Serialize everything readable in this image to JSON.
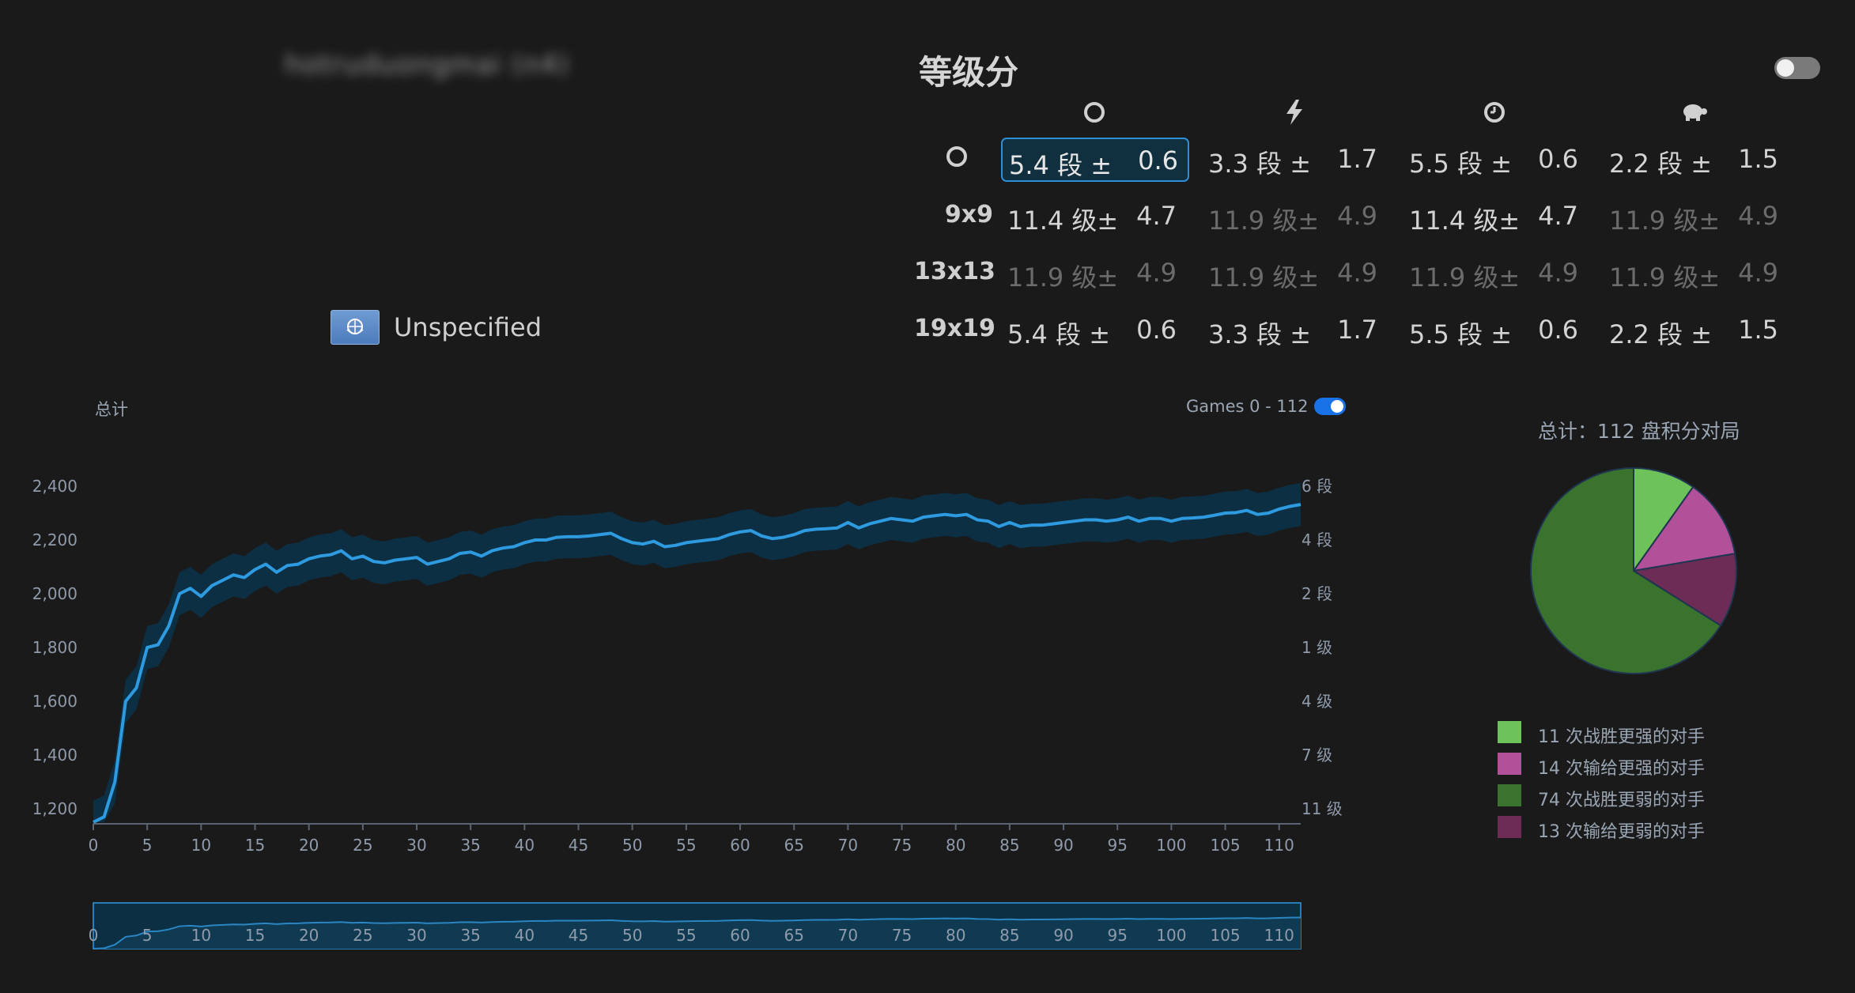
{
  "profile": {
    "username": "hotruduongmai (n4)",
    "country": "Unspecified"
  },
  "ratings": {
    "title": "等级分",
    "columns": [
      "overall-icon",
      "blitz-icon",
      "live-clock-icon",
      "correspondence-turtle-icon"
    ],
    "rows": [
      {
        "label": "",
        "icon": "overall-icon",
        "cells": [
          {
            "rank": "5.4 段 ±",
            "dev": "0.6",
            "dim": false,
            "selected": true
          },
          {
            "rank": "3.3 段 ±",
            "dev": "1.7",
            "dim": false
          },
          {
            "rank": "5.5 段 ±",
            "dev": "0.6",
            "dim": false
          },
          {
            "rank": "2.2 段 ±",
            "dev": "1.5",
            "dim": false
          }
        ]
      },
      {
        "label": "9x9",
        "cells": [
          {
            "rank": "11.4 级±",
            "dev": "4.7",
            "dim": false
          },
          {
            "rank": "11.9 级±",
            "dev": "4.9",
            "dim": true
          },
          {
            "rank": "11.4 级±",
            "dev": "4.7",
            "dim": false
          },
          {
            "rank": "11.9 级±",
            "dev": "4.9",
            "dim": true
          }
        ]
      },
      {
        "label": "13x13",
        "cells": [
          {
            "rank": "11.9 级±",
            "dev": "4.9",
            "dim": true
          },
          {
            "rank": "11.9 级±",
            "dev": "4.9",
            "dim": true
          },
          {
            "rank": "11.9 级±",
            "dev": "4.9",
            "dim": true
          },
          {
            "rank": "11.9 级±",
            "dev": "4.9",
            "dim": true
          }
        ]
      },
      {
        "label": "19x19",
        "cells": [
          {
            "rank": "5.4 段 ±",
            "dev": "0.6",
            "dim": false
          },
          {
            "rank": "3.3 段 ±",
            "dev": "1.7",
            "dim": false
          },
          {
            "rank": "5.5 段 ±",
            "dev": "0.6",
            "dim": false
          },
          {
            "rank": "2.2 段 ±",
            "dev": "1.5",
            "dim": false
          }
        ]
      }
    ]
  },
  "chart_header": {
    "title": "总计",
    "range_label": "Games 0 - 112",
    "range_toggle_on": true
  },
  "colors": {
    "line": "#2e9be0",
    "band": "#0c2f44",
    "axis_text": "#8f9bab",
    "pie_win_stronger": "#6dc25a",
    "pie_loss_stronger": "#b2519a",
    "pie_win_weaker": "#3a732d",
    "pie_loss_weaker": "#6c2c55"
  },
  "chart_data": [
    {
      "type": "line",
      "title": "总计",
      "xlabel": "",
      "ylabel": "",
      "xlim": [
        0,
        112
      ],
      "ylim": [
        1150,
        2450
      ],
      "x_ticks": [
        0,
        5,
        10,
        15,
        20,
        25,
        30,
        35,
        40,
        45,
        50,
        55,
        60,
        65,
        70,
        75,
        80,
        85,
        90,
        95,
        100,
        105,
        110
      ],
      "y_ticks": [
        1200,
        1400,
        1600,
        1800,
        2000,
        2200,
        2400
      ],
      "y_tick_labels": [
        "1,200",
        "1,400",
        "1,600",
        "1,800",
        "2,000",
        "2,200",
        "2,400"
      ],
      "y2_ticks": [
        {
          "value": 2400,
          "label": "6 段"
        },
        {
          "value": 2200,
          "label": "4 段"
        },
        {
          "value": 2000,
          "label": "2 段"
        },
        {
          "value": 1800,
          "label": "1 级"
        },
        {
          "value": 1600,
          "label": "4 级"
        },
        {
          "value": 1400,
          "label": "7 级"
        },
        {
          "value": 1200,
          "label": "11 级"
        }
      ],
      "series": [
        {
          "points": [
            [
              0,
              1150
            ],
            [
              1,
              1170
            ],
            [
              2,
              1300
            ],
            [
              3,
              1600
            ],
            [
              4,
              1650
            ],
            [
              5,
              1800
            ],
            [
              6,
              1810
            ],
            [
              7,
              1880
            ],
            [
              8,
              2000
            ],
            [
              9,
              2020
            ],
            [
              10,
              1990
            ],
            [
              11,
              2030
            ],
            [
              12,
              2050
            ],
            [
              13,
              2070
            ],
            [
              14,
              2060
            ],
            [
              15,
              2090
            ],
            [
              16,
              2110
            ],
            [
              17,
              2080
            ],
            [
              18,
              2105
            ],
            [
              19,
              2110
            ],
            [
              20,
              2130
            ],
            [
              21,
              2140
            ],
            [
              22,
              2145
            ],
            [
              23,
              2160
            ],
            [
              24,
              2130
            ],
            [
              25,
              2140
            ],
            [
              26,
              2120
            ],
            [
              27,
              2115
            ],
            [
              28,
              2125
            ],
            [
              29,
              2130
            ],
            [
              30,
              2135
            ],
            [
              31,
              2110
            ],
            [
              32,
              2120
            ],
            [
              33,
              2130
            ],
            [
              34,
              2150
            ],
            [
              35,
              2155
            ],
            [
              36,
              2140
            ],
            [
              37,
              2160
            ],
            [
              38,
              2170
            ],
            [
              39,
              2175
            ],
            [
              40,
              2190
            ],
            [
              41,
              2200
            ],
            [
              42,
              2200
            ],
            [
              43,
              2210
            ],
            [
              44,
              2212
            ],
            [
              45,
              2212
            ],
            [
              46,
              2215
            ],
            [
              47,
              2220
            ],
            [
              48,
              2225
            ],
            [
              49,
              2205
            ],
            [
              50,
              2190
            ],
            [
              51,
              2185
            ],
            [
              52,
              2195
            ],
            [
              53,
              2175
            ],
            [
              54,
              2180
            ],
            [
              55,
              2190
            ],
            [
              56,
              2195
            ],
            [
              57,
              2200
            ],
            [
              58,
              2205
            ],
            [
              59,
              2220
            ],
            [
              60,
              2230
            ],
            [
              61,
              2235
            ],
            [
              62,
              2215
            ],
            [
              63,
              2205
            ],
            [
              64,
              2210
            ],
            [
              65,
              2220
            ],
            [
              66,
              2235
            ],
            [
              67,
              2240
            ],
            [
              68,
              2242
            ],
            [
              69,
              2245
            ],
            [
              70,
              2265
            ],
            [
              71,
              2245
            ],
            [
              72,
              2260
            ],
            [
              73,
              2270
            ],
            [
              74,
              2280
            ],
            [
              75,
              2275
            ],
            [
              76,
              2270
            ],
            [
              77,
              2285
            ],
            [
              78,
              2290
            ],
            [
              79,
              2295
            ],
            [
              80,
              2290
            ],
            [
              81,
              2295
            ],
            [
              82,
              2275
            ],
            [
              83,
              2270
            ],
            [
              84,
              2250
            ],
            [
              85,
              2265
            ],
            [
              86,
              2250
            ],
            [
              87,
              2255
            ],
            [
              88,
              2255
            ],
            [
              89,
              2260
            ],
            [
              90,
              2265
            ],
            [
              91,
              2270
            ],
            [
              92,
              2275
            ],
            [
              93,
              2275
            ],
            [
              94,
              2270
            ],
            [
              95,
              2275
            ],
            [
              96,
              2285
            ],
            [
              97,
              2270
            ],
            [
              98,
              2280
            ],
            [
              99,
              2280
            ],
            [
              100,
              2270
            ],
            [
              101,
              2280
            ],
            [
              102,
              2282
            ],
            [
              103,
              2285
            ],
            [
              104,
              2292
            ],
            [
              105,
              2300
            ],
            [
              106,
              2302
            ],
            [
              107,
              2310
            ],
            [
              108,
              2295
            ],
            [
              109,
              2300
            ],
            [
              110,
              2315
            ],
            [
              111,
              2325
            ],
            [
              112,
              2332
            ]
          ],
          "deviation_band": 80
        }
      ]
    },
    {
      "type": "area",
      "title": "",
      "x_ticks": [
        0,
        5,
        10,
        15,
        20,
        25,
        30,
        35,
        40,
        45,
        50,
        55,
        60,
        65,
        70,
        75,
        80,
        85,
        90,
        95,
        100,
        105,
        110
      ],
      "xlim": [
        0,
        112
      ],
      "selected_range": [
        0,
        112
      ]
    },
    {
      "type": "pie",
      "title": "总计：112 盘积分对局",
      "slices": [
        {
          "label": "11 次战胜更强的对手",
          "value": 11,
          "color_key": "pie_win_stronger"
        },
        {
          "label": "14 次输给更强的对手",
          "value": 14,
          "color_key": "pie_loss_stronger"
        },
        {
          "label": "13 次输给更弱的对手",
          "value": 13,
          "color_key": "pie_loss_weaker"
        },
        {
          "label": "74 次战胜更弱的对手",
          "value": 74,
          "color_key": "pie_win_weaker"
        }
      ],
      "legend": [
        {
          "label": "11 次战胜更强的对手",
          "color_key": "pie_win_stronger"
        },
        {
          "label": "14 次输给更强的对手",
          "color_key": "pie_loss_stronger"
        },
        {
          "label": "74 次战胜更弱的对手",
          "color_key": "pie_win_weaker"
        },
        {
          "label": "13 次输给更弱的对手",
          "color_key": "pie_loss_weaker"
        }
      ]
    }
  ]
}
